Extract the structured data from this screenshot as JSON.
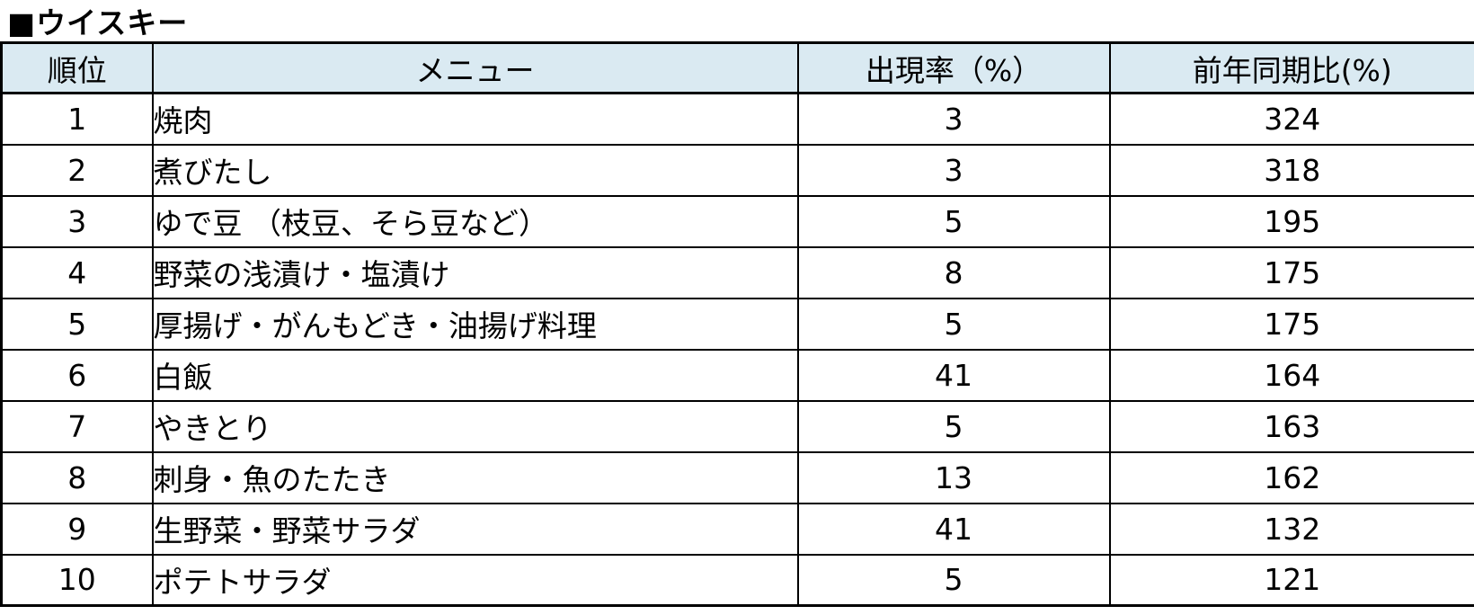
{
  "title": "■ウイスキー",
  "colors": {
    "header_bg": "#daeaf2",
    "border": "#000000",
    "text": "#000000",
    "background": "#ffffff"
  },
  "chart_data": {
    "type": "table",
    "title": "■ウイスキー",
    "columns": [
      "順位",
      "メニュー",
      "出現率（%）",
      "前年同期比(%)"
    ],
    "rows": [
      [
        1,
        "焼肉",
        3,
        324
      ],
      [
        2,
        "煮びたし",
        3,
        318
      ],
      [
        3,
        "ゆで豆 （枝豆、そら豆など）",
        5,
        195
      ],
      [
        4,
        "野菜の浅漬け・塩漬け",
        8,
        175
      ],
      [
        5,
        "厚揚げ・がんもどき・油揚げ料理",
        5,
        175
      ],
      [
        6,
        "白飯",
        41,
        164
      ],
      [
        7,
        "やきとり",
        5,
        163
      ],
      [
        8,
        "刺身・魚のたたき",
        13,
        162
      ],
      [
        9,
        "生野菜・野菜サラダ",
        41,
        132
      ],
      [
        10,
        "ポテトサラダ",
        5,
        121
      ]
    ]
  }
}
